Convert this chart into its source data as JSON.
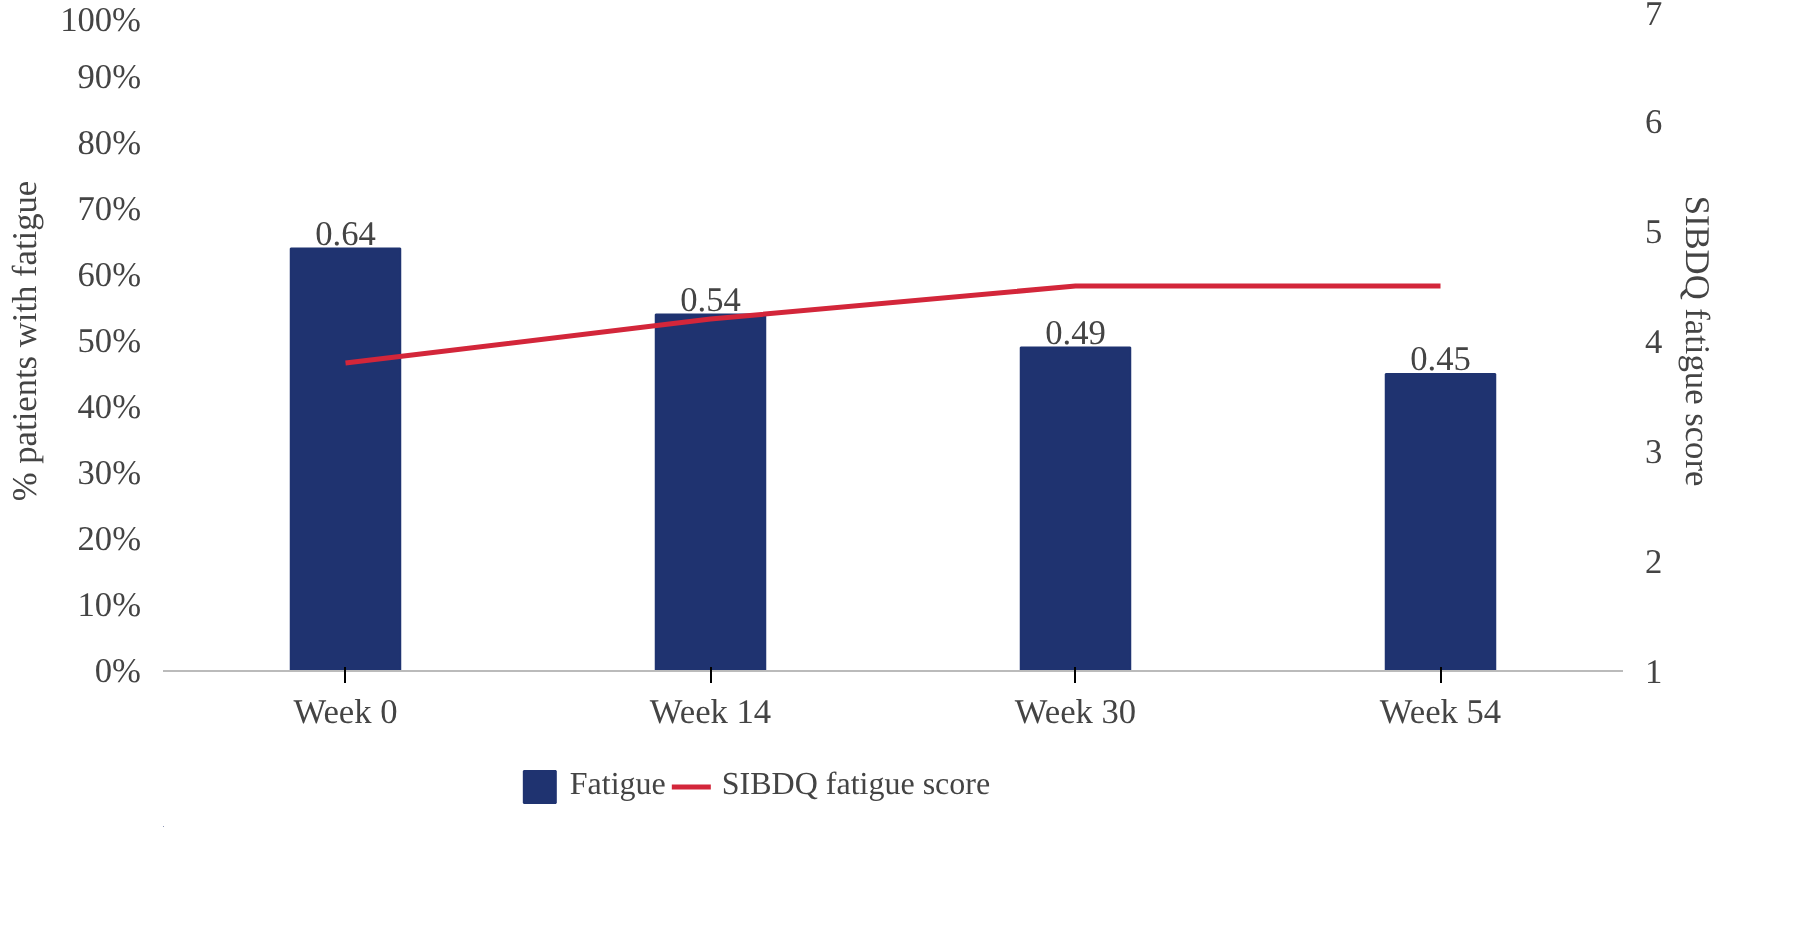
{
  "chart_data": {
    "type": "bar",
    "categories": [
      "Week 0",
      "Week 14",
      "Week 30",
      "Week 54"
    ],
    "ylabel": "% patients with fatigue",
    "y2label": "SIBDQ fatigue score",
    "ylim": [
      0,
      1
    ],
    "yticks": [
      {
        "value": 0,
        "label": "0%"
      },
      {
        "value": 0.1,
        "label": "10%"
      },
      {
        "value": 0.2,
        "label": "20%"
      },
      {
        "value": 0.3,
        "label": "30%"
      },
      {
        "value": 0.4,
        "label": "40%"
      },
      {
        "value": 0.5,
        "label": "50%"
      },
      {
        "value": 0.6,
        "label": "60%"
      },
      {
        "value": 0.7,
        "label": "70%"
      },
      {
        "value": 0.8,
        "label": "80%"
      },
      {
        "value": 0.9,
        "label": "90%"
      },
      {
        "value": 1,
        "label": "100%"
      }
    ],
    "y2lim": [
      1,
      7
    ],
    "y2ticks": [
      1,
      2,
      3,
      4,
      5,
      6,
      7
    ],
    "series": [
      {
        "name": "Fatigue",
        "type": "bar",
        "color": "#1f3370",
        "values": [
          0.64,
          0.54,
          0.49,
          0.45
        ],
        "data_labels": true
      },
      {
        "name": "SIBDQ fatigue score",
        "type": "line",
        "axis": "y2",
        "color": "#d3263a",
        "values": [
          3.8,
          4.2,
          4.5,
          4.5
        ]
      }
    ],
    "legend": "bottom",
    "grid": false
  }
}
